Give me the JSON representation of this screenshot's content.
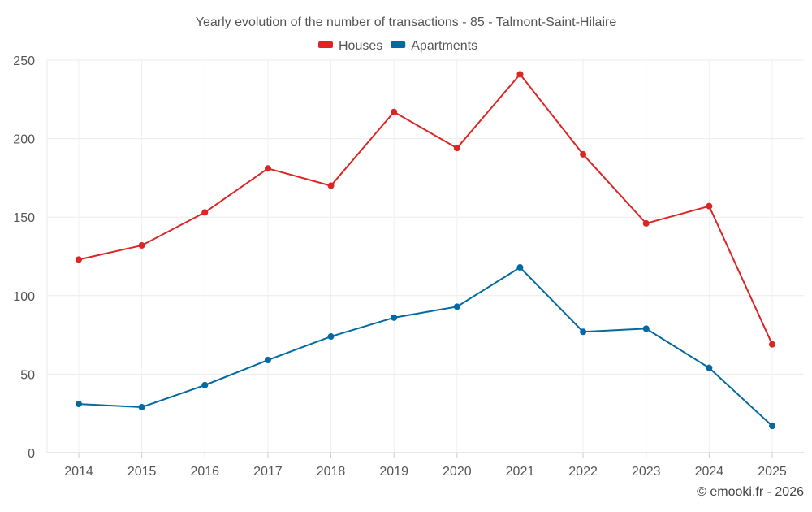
{
  "chart_data": {
    "type": "line",
    "title": "Yearly evolution of the number of transactions - 85 - Talmont-Saint-Hilaire",
    "xlabel": "",
    "ylabel": "",
    "categories": [
      "2014",
      "2015",
      "2016",
      "2017",
      "2018",
      "2019",
      "2020",
      "2021",
      "2022",
      "2023",
      "2024",
      "2025"
    ],
    "ylim": [
      0,
      250
    ],
    "yticks": [
      0,
      50,
      100,
      150,
      200,
      250
    ],
    "grid": true,
    "legend_position": "top-center",
    "series": [
      {
        "name": "Houses",
        "color": "#dc2626",
        "values": [
          123,
          132,
          153,
          181,
          170,
          217,
          194,
          241,
          190,
          146,
          157,
          69
        ]
      },
      {
        "name": "Apartments",
        "color": "#0369a1",
        "values": [
          31,
          29,
          43,
          59,
          74,
          86,
          93,
          118,
          77,
          79,
          54,
          17
        ]
      }
    ]
  },
  "credit": "© emooki.fr - 2026"
}
